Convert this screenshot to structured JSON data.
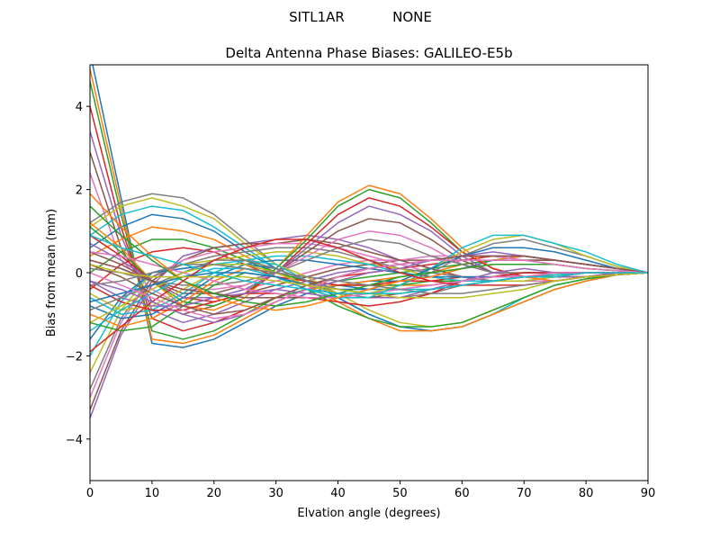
{
  "figure": {
    "suptitle_station": "SITL1AR",
    "suptitle_radome": "NONE"
  },
  "chart_data": {
    "type": "line",
    "title": "Delta Antenna Phase Biases: GALILEO-E5b",
    "xlabel": "Elvation angle (degrees)",
    "ylabel": "Bias from mean (mm)",
    "xlim": [
      0,
      90
    ],
    "ylim": [
      -5,
      5
    ],
    "xticks": [
      0,
      10,
      20,
      30,
      40,
      50,
      60,
      70,
      80,
      90
    ],
    "yticks": [
      -4,
      -2,
      0,
      2,
      4
    ],
    "xtick_labels": [
      "0",
      "10",
      "20",
      "30",
      "40",
      "50",
      "60",
      "70",
      "80",
      "90"
    ],
    "ytick_labels": [
      "−4",
      "−2",
      "0",
      "2",
      "4"
    ],
    "grid": false,
    "legend": "none",
    "x": [
      0,
      5,
      10,
      15,
      20,
      25,
      30,
      35,
      40,
      45,
      50,
      55,
      60,
      65,
      70,
      75,
      80,
      85,
      90
    ],
    "color_cycle": [
      "#1f77b4",
      "#ff7f0e",
      "#2ca02c",
      "#d62728",
      "#9467bd",
      "#8c564b",
      "#e377c2",
      "#7f7f7f",
      "#bcbd22",
      "#17becf"
    ],
    "series": [
      {
        "values": [
          5.3,
          1.8,
          -1.7,
          -1.8,
          -1.6,
          -1.2,
          -0.8,
          -0.5,
          -0.3,
          -0.2,
          -0.2,
          -0.1,
          0.1,
          0.3,
          0.4,
          0.3,
          0.2,
          0.1,
          0
        ]
      },
      {
        "values": [
          4.9,
          1.6,
          -1.6,
          -1.7,
          -1.5,
          -1.1,
          -0.7,
          -0.4,
          -0.3,
          -0.2,
          -0.1,
          0.0,
          0.2,
          0.3,
          0.4,
          0.3,
          0.2,
          0.1,
          0
        ]
      },
      {
        "values": [
          4.6,
          1.4,
          -1.4,
          -1.6,
          -1.4,
          -1.0,
          -0.6,
          -0.4,
          -0.2,
          -0.1,
          0.0,
          0.1,
          0.2,
          0.3,
          0.3,
          0.3,
          0.2,
          0.1,
          0
        ]
      },
      {
        "values": [
          4.0,
          1.1,
          -1.1,
          -1.4,
          -1.2,
          -0.9,
          -0.6,
          -0.3,
          -0.1,
          0.0,
          0.1,
          0.2,
          0.3,
          0.4,
          0.4,
          0.3,
          0.2,
          0.1,
          0
        ]
      },
      {
        "values": [
          3.4,
          0.9,
          -0.9,
          -1.2,
          -1.0,
          -0.7,
          -0.4,
          -0.2,
          0.0,
          0.1,
          0.2,
          0.3,
          0.4,
          0.4,
          0.4,
          0.3,
          0.2,
          0.1,
          0
        ]
      },
      {
        "values": [
          2.9,
          0.6,
          -0.7,
          -1.0,
          -0.8,
          -0.5,
          -0.3,
          -0.1,
          0.1,
          0.2,
          0.3,
          0.3,
          0.4,
          0.4,
          0.3,
          0.3,
          0.2,
          0.1,
          0
        ]
      },
      {
        "values": [
          2.4,
          0.3,
          -0.4,
          -0.8,
          -0.6,
          -0.4,
          -0.2,
          0.0,
          0.2,
          0.3,
          0.3,
          0.4,
          0.4,
          0.4,
          0.3,
          0.2,
          0.1,
          0.05,
          0
        ]
      },
      {
        "values": [
          1.2,
          1.7,
          1.9,
          1.8,
          1.4,
          0.8,
          0.2,
          -0.2,
          -0.5,
          -0.6,
          -0.6,
          -0.5,
          -0.3,
          -0.2,
          -0.1,
          0.0,
          0.0,
          0.0,
          0
        ]
      },
      {
        "values": [
          1.1,
          1.6,
          1.8,
          1.6,
          1.3,
          0.7,
          0.2,
          -0.2,
          -0.4,
          -0.5,
          -0.5,
          -0.4,
          -0.3,
          -0.2,
          -0.1,
          -0.05,
          0.0,
          0.0,
          0
        ]
      },
      {
        "values": [
          0.9,
          1.4,
          1.6,
          1.5,
          1.1,
          0.6,
          0.1,
          -0.2,
          -0.4,
          -0.5,
          -0.4,
          -0.4,
          -0.3,
          -0.2,
          -0.1,
          -0.05,
          0.0,
          0.0,
          0
        ]
      },
      {
        "values": [
          0.6,
          1.1,
          1.4,
          1.3,
          1.0,
          0.5,
          0.1,
          -0.2,
          -0.3,
          -0.4,
          -0.4,
          -0.3,
          -0.2,
          -0.1,
          -0.1,
          0.0,
          0.0,
          0.0,
          0
        ]
      },
      {
        "values": [
          0.4,
          0.8,
          1.1,
          1.0,
          0.8,
          0.4,
          0.0,
          -0.2,
          -0.3,
          -0.3,
          -0.3,
          -0.3,
          -0.2,
          -0.1,
          -0.1,
          0.0,
          0.0,
          0.0,
          0
        ]
      },
      {
        "values": [
          0.0,
          0.5,
          0.8,
          0.8,
          0.6,
          0.3,
          0.0,
          -0.2,
          -0.3,
          -0.3,
          -0.3,
          -0.2,
          -0.2,
          -0.1,
          0.0,
          0.0,
          0.0,
          0.0,
          0
        ]
      },
      {
        "values": [
          -0.4,
          0.2,
          0.5,
          0.6,
          0.5,
          0.2,
          -0.1,
          -0.2,
          -0.3,
          -0.3,
          -0.2,
          -0.2,
          -0.1,
          -0.1,
          0.0,
          0.0,
          0.0,
          0.0,
          0
        ]
      },
      {
        "values": [
          -3.5,
          -1.5,
          -0.3,
          0.4,
          0.6,
          0.7,
          0.8,
          0.9,
          0.8,
          0.6,
          0.3,
          0.1,
          -0.1,
          -0.2,
          -0.2,
          -0.2,
          -0.1,
          -0.05,
          0
        ]
      },
      {
        "values": [
          -3.3,
          -1.4,
          -0.2,
          0.3,
          0.6,
          0.7,
          0.7,
          0.8,
          0.7,
          0.5,
          0.3,
          0.1,
          -0.1,
          -0.2,
          -0.2,
          -0.2,
          -0.1,
          -0.05,
          0
        ]
      },
      {
        "values": [
          -3.0,
          -1.2,
          -0.1,
          0.3,
          0.5,
          0.6,
          0.7,
          0.7,
          0.6,
          0.4,
          0.2,
          0.0,
          -0.1,
          -0.2,
          -0.2,
          -0.2,
          -0.1,
          0.0,
          0
        ]
      },
      {
        "values": [
          -2.8,
          -1.1,
          -0.1,
          0.2,
          0.4,
          0.5,
          0.6,
          0.6,
          0.5,
          0.3,
          0.1,
          0.0,
          -0.1,
          -0.2,
          -0.2,
          -0.1,
          -0.1,
          0.0,
          0
        ]
      },
      {
        "values": [
          -2.4,
          -0.9,
          0.0,
          0.2,
          0.3,
          0.4,
          0.5,
          0.5,
          0.4,
          0.2,
          0.1,
          -0.1,
          -0.2,
          -0.2,
          -0.2,
          -0.1,
          -0.1,
          0.0,
          0
        ]
      },
      {
        "values": [
          -2.0,
          -0.7,
          0.0,
          0.1,
          0.2,
          0.3,
          0.4,
          0.4,
          0.3,
          0.2,
          0.0,
          -0.1,
          -0.2,
          -0.2,
          -0.1,
          -0.1,
          0.0,
          0.0,
          0
        ]
      },
      {
        "values": [
          -1.6,
          -0.6,
          0.0,
          0.1,
          0.2,
          0.2,
          0.3,
          0.3,
          0.2,
          0.1,
          0.0,
          -0.1,
          -0.1,
          -0.1,
          -0.1,
          -0.1,
          0.0,
          0.0,
          0
        ]
      },
      {
        "values": [
          1.2,
          0.6,
          -0.2,
          -0.8,
          -0.9,
          -0.6,
          0.1,
          0.9,
          1.7,
          2.1,
          1.9,
          1.3,
          0.6,
          0.1,
          -0.1,
          -0.2,
          -0.1,
          -0.05,
          0
        ]
      },
      {
        "values": [
          1.1,
          0.5,
          -0.2,
          -0.7,
          -0.8,
          -0.5,
          0.1,
          0.8,
          1.6,
          2.0,
          1.8,
          1.2,
          0.5,
          0.1,
          -0.1,
          -0.1,
          -0.1,
          -0.05,
          0
        ]
      },
      {
        "values": [
          0.9,
          0.4,
          -0.2,
          -0.6,
          -0.7,
          -0.5,
          0.0,
          0.7,
          1.4,
          1.8,
          1.6,
          1.1,
          0.5,
          0.1,
          -0.1,
          -0.1,
          -0.1,
          0.0,
          0
        ]
      },
      {
        "values": [
          0.7,
          0.3,
          -0.2,
          -0.6,
          -0.6,
          -0.4,
          0.0,
          0.6,
          1.2,
          1.6,
          1.4,
          1.0,
          0.4,
          0.0,
          -0.1,
          -0.1,
          -0.1,
          0.0,
          0
        ]
      },
      {
        "values": [
          0.5,
          0.2,
          -0.2,
          -0.5,
          -0.5,
          -0.3,
          0.0,
          0.5,
          1.0,
          1.3,
          1.2,
          0.8,
          0.3,
          0.0,
          -0.1,
          -0.1,
          0.0,
          0.0,
          0
        ]
      },
      {
        "values": [
          0.3,
          0.1,
          -0.2,
          -0.4,
          -0.4,
          -0.3,
          0.0,
          0.4,
          0.8,
          1.0,
          0.9,
          0.6,
          0.2,
          0.0,
          -0.1,
          -0.1,
          0.0,
          0.0,
          0
        ]
      },
      {
        "values": [
          0.1,
          0.0,
          -0.2,
          -0.3,
          -0.3,
          -0.2,
          0.0,
          0.3,
          0.6,
          0.8,
          0.7,
          0.4,
          0.2,
          0.0,
          0.0,
          0.0,
          0.0,
          0.0,
          0
        ]
      },
      {
        "values": [
          -0.5,
          -0.9,
          -0.8,
          -0.4,
          0.0,
          0.3,
          0.2,
          -0.1,
          -0.5,
          -0.9,
          -1.2,
          -1.3,
          -1.2,
          -0.9,
          -0.6,
          -0.3,
          -0.15,
          -0.05,
          0
        ]
      },
      {
        "values": [
          -0.6,
          -1.0,
          -0.9,
          -0.5,
          0.0,
          0.3,
          0.2,
          -0.2,
          -0.6,
          -1.0,
          -1.3,
          -1.4,
          -1.3,
          -1.0,
          -0.6,
          -0.3,
          -0.15,
          -0.05,
          0
        ]
      },
      {
        "values": [
          -0.8,
          -1.1,
          -1.0,
          -0.6,
          -0.1,
          0.2,
          0.1,
          -0.2,
          -0.6,
          -1.0,
          -1.3,
          -1.4,
          -1.3,
          -1.0,
          -0.7,
          -0.4,
          -0.2,
          -0.05,
          0
        ]
      },
      {
        "values": [
          -1.0,
          -1.3,
          -1.1,
          -0.7,
          -0.2,
          0.1,
          0.0,
          -0.3,
          -0.7,
          -1.1,
          -1.4,
          -1.4,
          -1.3,
          -1.0,
          -0.7,
          -0.4,
          -0.2,
          -0.05,
          0
        ]
      },
      {
        "values": [
          -1.2,
          -1.4,
          -1.3,
          -0.8,
          -0.3,
          0.0,
          -0.1,
          -0.4,
          -0.8,
          -1.1,
          -1.3,
          -1.3,
          -1.2,
          -0.9,
          -0.6,
          -0.3,
          -0.15,
          -0.05,
          0
        ]
      },
      {
        "values": [
          -0.3,
          -0.7,
          -0.9,
          -0.9,
          -0.7,
          -0.5,
          -0.5,
          -0.6,
          -0.7,
          -0.8,
          -0.7,
          -0.5,
          -0.2,
          -0.1,
          0.0,
          0.0,
          0.0,
          0.0,
          0
        ]
      },
      {
        "values": [
          -0.2,
          -0.6,
          -0.8,
          -0.8,
          -0.6,
          -0.5,
          -0.4,
          -0.5,
          -0.6,
          -0.6,
          -0.6,
          -0.4,
          -0.2,
          0.0,
          0.1,
          0.0,
          0.0,
          0.0,
          0
        ]
      },
      {
        "values": [
          0.3,
          0.1,
          -0.2,
          -0.4,
          -0.5,
          -0.6,
          -0.6,
          -0.6,
          -0.6,
          -0.6,
          -0.5,
          -0.4,
          -0.3,
          -0.2,
          -0.1,
          -0.1,
          0.0,
          0.0,
          0
        ]
      },
      {
        "values": [
          0.5,
          0.4,
          0.2,
          0.0,
          -0.2,
          -0.4,
          -0.5,
          -0.6,
          -0.6,
          -0.5,
          -0.4,
          -0.3,
          -0.2,
          -0.1,
          -0.1,
          0.0,
          0.0,
          0.0,
          0
        ]
      },
      {
        "values": [
          -0.9,
          -0.6,
          -0.3,
          0.0,
          0.3,
          0.3,
          0.1,
          -0.2,
          -0.4,
          -0.5,
          -0.3,
          0.0,
          0.4,
          0.7,
          0.8,
          0.6,
          0.4,
          0.15,
          0
        ]
      },
      {
        "values": [
          -1.2,
          -0.8,
          -0.4,
          0.0,
          0.2,
          0.2,
          0.0,
          -0.3,
          -0.5,
          -0.5,
          -0.3,
          0.1,
          0.5,
          0.8,
          0.9,
          0.7,
          0.4,
          0.15,
          0
        ]
      },
      {
        "values": [
          -1.4,
          -0.9,
          -0.5,
          -0.1,
          0.1,
          0.1,
          -0.1,
          -0.4,
          -0.6,
          -0.6,
          -0.3,
          0.1,
          0.6,
          0.9,
          0.9,
          0.7,
          0.5,
          0.2,
          0
        ]
      },
      {
        "values": [
          -0.7,
          -0.5,
          -0.3,
          -0.1,
          0.0,
          0.0,
          -0.1,
          -0.3,
          -0.4,
          -0.4,
          -0.2,
          0.1,
          0.4,
          0.6,
          0.6,
          0.5,
          0.3,
          0.1,
          0
        ]
      },
      {
        "values": [
          1.9,
          1.1,
          0.4,
          -0.2,
          -0.6,
          -0.8,
          -0.9,
          -0.8,
          -0.6,
          -0.4,
          -0.2,
          -0.1,
          0.1,
          0.2,
          0.2,
          0.2,
          0.1,
          0.05,
          0
        ]
      },
      {
        "values": [
          1.6,
          0.9,
          0.3,
          -0.2,
          -0.5,
          -0.7,
          -0.8,
          -0.7,
          -0.5,
          -0.3,
          -0.1,
          0.0,
          0.1,
          0.2,
          0.2,
          0.2,
          0.1,
          0.05,
          0
        ]
      },
      {
        "values": [
          -1.9,
          -1.3,
          -0.7,
          -0.2,
          0.3,
          0.6,
          0.8,
          0.8,
          0.6,
          0.3,
          0.0,
          -0.2,
          -0.3,
          -0.3,
          -0.3,
          -0.2,
          -0.1,
          -0.05,
          0
        ]
      },
      {
        "values": [
          -0.2,
          -0.4,
          -0.7,
          -1.0,
          -1.2,
          -1.0,
          -0.7,
          -0.4,
          -0.2,
          0.0,
          0.1,
          0.3,
          0.4,
          0.5,
          0.4,
          0.3,
          0.2,
          0.1,
          0
        ]
      },
      {
        "values": [
          0.2,
          -0.1,
          -0.5,
          -0.8,
          -1.0,
          -0.9,
          -0.6,
          -0.3,
          -0.1,
          0.1,
          0.2,
          0.3,
          0.4,
          0.4,
          0.4,
          0.3,
          0.2,
          0.1,
          0
        ]
      },
      {
        "values": [
          0.0,
          -0.3,
          -0.6,
          -0.9,
          -1.1,
          -1.0,
          -0.7,
          -0.4,
          -0.1,
          0.1,
          0.2,
          0.3,
          0.3,
          0.3,
          0.3,
          0.2,
          0.1,
          0.05,
          0
        ]
      },
      {
        "values": [
          -0.3,
          -0.2,
          0.0,
          0.2,
          0.2,
          0.1,
          0.0,
          -0.1,
          -0.2,
          -0.3,
          -0.4,
          -0.5,
          -0.5,
          -0.4,
          -0.3,
          -0.2,
          -0.1,
          -0.05,
          0
        ]
      },
      {
        "values": [
          0.2,
          0.0,
          -0.1,
          -0.1,
          -0.1,
          -0.1,
          -0.2,
          -0.3,
          -0.4,
          -0.5,
          -0.6,
          -0.6,
          -0.6,
          -0.5,
          -0.4,
          -0.2,
          -0.1,
          -0.05,
          0
        ]
      },
      {
        "values": [
          0.9,
          0.6,
          0.4,
          0.2,
          0.0,
          -0.2,
          -0.3,
          -0.4,
          -0.5,
          -0.5,
          -0.5,
          -0.4,
          -0.3,
          -0.2,
          -0.1,
          -0.1,
          0.0,
          0.0,
          0
        ]
      }
    ]
  }
}
